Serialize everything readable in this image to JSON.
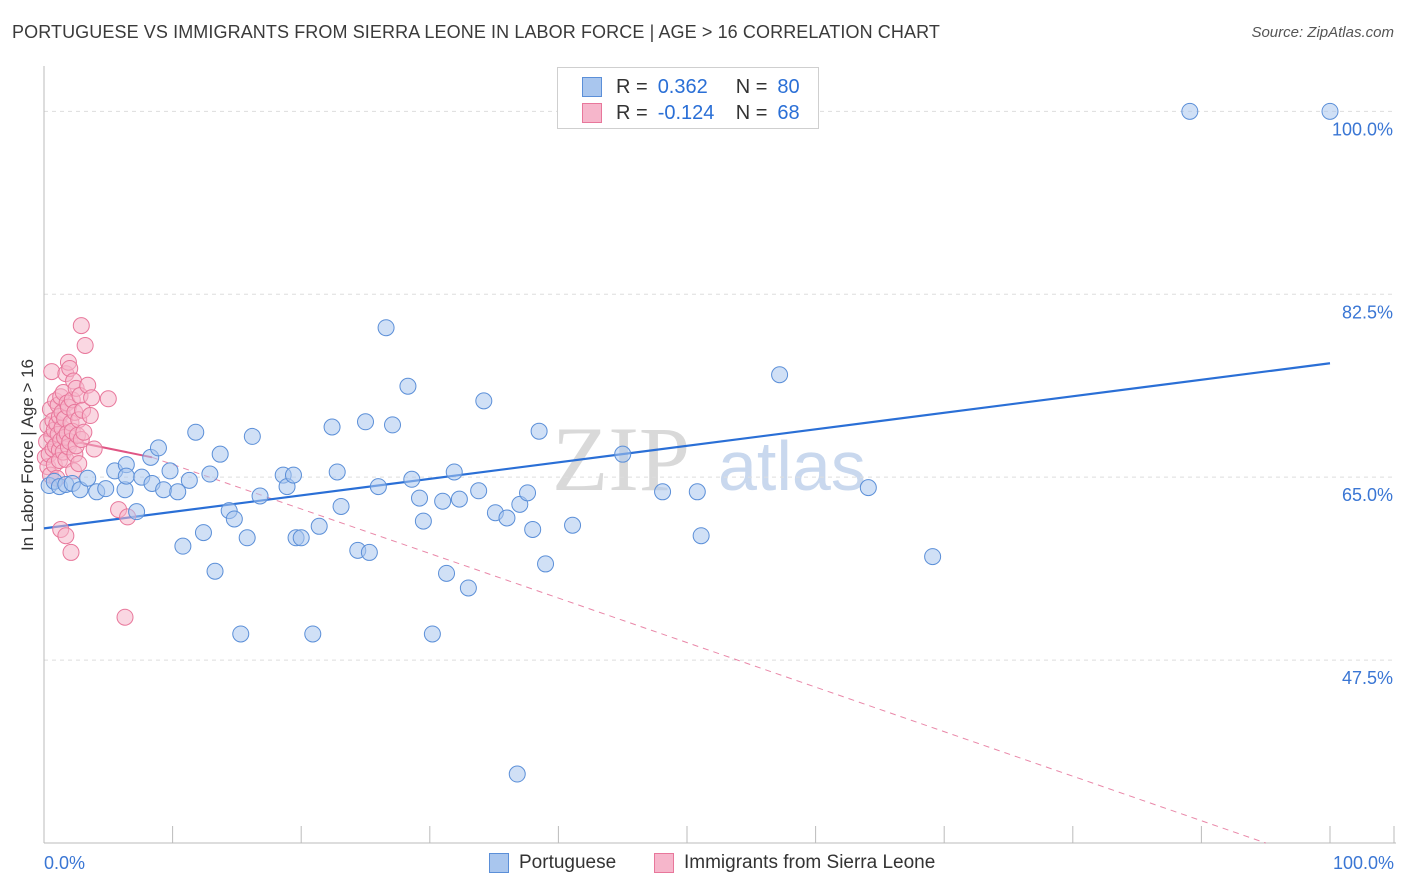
{
  "title": "PORTUGUESE VS IMMIGRANTS FROM SIERRA LEONE IN LABOR FORCE | AGE > 16 CORRELATION CHART",
  "source": "Source: ZipAtlas.com",
  "watermark": {
    "zip": "ZIP",
    "atlas": "atlas"
  },
  "legend": {
    "rows": [
      {
        "r_label": "R =",
        "r_value": "0.362",
        "n_label": "N =",
        "n_value": "80"
      },
      {
        "r_label": "R =",
        "r_value": "-0.124",
        "n_label": "N =",
        "n_value": "68"
      }
    ]
  },
  "bottom_legend": [
    "Portuguese",
    "Immigrants from Sierra Leone"
  ],
  "colors": {
    "blue_fill": "#a9c6ee",
    "blue_stroke": "#5b8fd8",
    "blue_line": "#2a6fd6",
    "pink_fill": "#f6b6cb",
    "pink_stroke": "#e8779b",
    "pink_line": "#e05584",
    "grid": "#dddddd",
    "tick_text": "#3a76d4"
  },
  "chart_data": {
    "type": "scatter",
    "title": "PORTUGUESE VS IMMIGRANTS FROM SIERRA LEONE IN LABOR FORCE | AGE > 16 CORRELATION CHART",
    "xlabel": "",
    "ylabel": "In Labor Force | Age > 16",
    "xlim": [
      0,
      100
    ],
    "ylim": [
      30,
      103
    ],
    "x_tick_labels": [
      "0.0%",
      "100.0%"
    ],
    "y_ticks": [
      47.5,
      65.0,
      82.5,
      100.0
    ],
    "y_tick_labels": [
      "47.5%",
      "65.0%",
      "82.5%",
      "100.0%"
    ],
    "series": [
      {
        "name": "Portuguese",
        "r": 0.362,
        "n": 80,
        "trend": {
          "x": [
            0,
            100
          ],
          "y": [
            60.1,
            75.9
          ],
          "style": "solid"
        },
        "points": [
          [
            0.4,
            64.2
          ],
          [
            0.8,
            64.6
          ],
          [
            1.2,
            64.1
          ],
          [
            1.7,
            64.3
          ],
          [
            2.2,
            64.4
          ],
          [
            2.8,
            63.8
          ],
          [
            3.4,
            64.9
          ],
          [
            4.1,
            63.6
          ],
          [
            4.8,
            63.9
          ],
          [
            5.5,
            65.6
          ],
          [
            6.3,
            63.8
          ],
          [
            6.4,
            66.2
          ],
          [
            6.4,
            65.1
          ],
          [
            7.2,
            61.7
          ],
          [
            7.6,
            65.0
          ],
          [
            8.3,
            66.9
          ],
          [
            8.4,
            64.4
          ],
          [
            8.9,
            67.8
          ],
          [
            9.3,
            63.8
          ],
          [
            9.8,
            65.6
          ],
          [
            10.4,
            63.6
          ],
          [
            10.8,
            58.4
          ],
          [
            11.3,
            64.7
          ],
          [
            11.8,
            69.3
          ],
          [
            12.4,
            59.7
          ],
          [
            12.9,
            65.3
          ],
          [
            13.3,
            56.0
          ],
          [
            13.7,
            67.2
          ],
          [
            14.4,
            61.8
          ],
          [
            14.8,
            61.0
          ],
          [
            15.3,
            50.0
          ],
          [
            15.8,
            59.2
          ],
          [
            16.2,
            68.9
          ],
          [
            16.8,
            63.2
          ],
          [
            18.6,
            65.2
          ],
          [
            18.9,
            64.1
          ],
          [
            19.4,
            65.2
          ],
          [
            19.6,
            59.2
          ],
          [
            20.0,
            59.2
          ],
          [
            20.9,
            50.0
          ],
          [
            21.4,
            60.3
          ],
          [
            22.4,
            69.8
          ],
          [
            22.8,
            65.5
          ],
          [
            23.1,
            62.2
          ],
          [
            24.4,
            58.0
          ],
          [
            25.0,
            70.3
          ],
          [
            25.3,
            57.8
          ],
          [
            26.0,
            64.1
          ],
          [
            26.6,
            79.3
          ],
          [
            27.1,
            70.0
          ],
          [
            28.3,
            73.7
          ],
          [
            28.6,
            64.8
          ],
          [
            29.2,
            63.0
          ],
          [
            29.5,
            60.8
          ],
          [
            30.2,
            50.0
          ],
          [
            31.0,
            62.7
          ],
          [
            31.3,
            55.8
          ],
          [
            31.9,
            65.5
          ],
          [
            32.3,
            62.9
          ],
          [
            33.0,
            54.4
          ],
          [
            33.8,
            63.7
          ],
          [
            34.2,
            72.3
          ],
          [
            35.1,
            61.6
          ],
          [
            36.0,
            61.1
          ],
          [
            36.8,
            36.6
          ],
          [
            37.0,
            62.4
          ],
          [
            37.6,
            63.5
          ],
          [
            38.0,
            60.0
          ],
          [
            38.5,
            69.4
          ],
          [
            39.0,
            56.7
          ],
          [
            41.1,
            60.4
          ],
          [
            45.0,
            67.2
          ],
          [
            48.1,
            63.6
          ],
          [
            50.8,
            63.6
          ],
          [
            51.1,
            59.4
          ],
          [
            57.2,
            74.8
          ],
          [
            64.1,
            64.0
          ],
          [
            69.1,
            57.4
          ],
          [
            89.1,
            100.0
          ],
          [
            100.0,
            100.0
          ]
        ]
      },
      {
        "name": "Immigrants from Sierra Leone",
        "r": -0.124,
        "n": 68,
        "trend": {
          "x": [
            0,
            8.4
          ],
          "y": [
            69.0,
            66.9
          ],
          "style": "solid",
          "extended_x": [
            8.4,
            95.0
          ],
          "extended_y": [
            66.9,
            30.0
          ],
          "extended_style": "dashed"
        },
        "points": [
          [
            0.1,
            66.9
          ],
          [
            0.2,
            68.4
          ],
          [
            0.3,
            66.0
          ],
          [
            0.3,
            69.9
          ],
          [
            0.4,
            67.2
          ],
          [
            0.5,
            65.2
          ],
          [
            0.5,
            71.5
          ],
          [
            0.6,
            68.9
          ],
          [
            0.6,
            75.1
          ],
          [
            0.7,
            67.7
          ],
          [
            0.7,
            70.4
          ],
          [
            0.8,
            69.5
          ],
          [
            0.8,
            66.2
          ],
          [
            0.9,
            72.3
          ],
          [
            0.9,
            68.0
          ],
          [
            1.0,
            70.1
          ],
          [
            1.0,
            64.9
          ],
          [
            1.1,
            69.1
          ],
          [
            1.1,
            71.9
          ],
          [
            1.2,
            67.6
          ],
          [
            1.2,
            70.8
          ],
          [
            1.2,
            66.6
          ],
          [
            1.3,
            72.7
          ],
          [
            1.3,
            68.5
          ],
          [
            1.3,
            60.0
          ],
          [
            1.4,
            69.7
          ],
          [
            1.4,
            71.2
          ],
          [
            1.5,
            67.4
          ],
          [
            1.5,
            73.1
          ],
          [
            1.6,
            68.8
          ],
          [
            1.6,
            70.6
          ],
          [
            1.7,
            74.9
          ],
          [
            1.7,
            59.4
          ],
          [
            1.7,
            66.7
          ],
          [
            1.8,
            72.1
          ],
          [
            1.8,
            69.2
          ],
          [
            1.9,
            76.0
          ],
          [
            1.9,
            67.9
          ],
          [
            1.9,
            71.7
          ],
          [
            2.0,
            75.4
          ],
          [
            2.0,
            68.4
          ],
          [
            2.1,
            70.2
          ],
          [
            2.1,
            57.8
          ],
          [
            2.2,
            72.4
          ],
          [
            2.2,
            69.4
          ],
          [
            2.3,
            65.6
          ],
          [
            2.3,
            74.2
          ],
          [
            2.4,
            67.2
          ],
          [
            2.4,
            71.2
          ],
          [
            2.5,
            68.0
          ],
          [
            2.5,
            73.5
          ],
          [
            2.6,
            69.0
          ],
          [
            2.7,
            70.5
          ],
          [
            2.7,
            66.3
          ],
          [
            2.8,
            72.8
          ],
          [
            2.9,
            68.6
          ],
          [
            2.9,
            79.5
          ],
          [
            3.0,
            71.4
          ],
          [
            3.1,
            69.3
          ],
          [
            3.2,
            77.6
          ],
          [
            3.4,
            73.8
          ],
          [
            3.6,
            70.9
          ],
          [
            3.7,
            72.6
          ],
          [
            3.9,
            67.7
          ],
          [
            5.0,
            72.5
          ],
          [
            5.8,
            61.9
          ],
          [
            6.3,
            51.6
          ],
          [
            6.5,
            61.2
          ]
        ]
      }
    ]
  }
}
